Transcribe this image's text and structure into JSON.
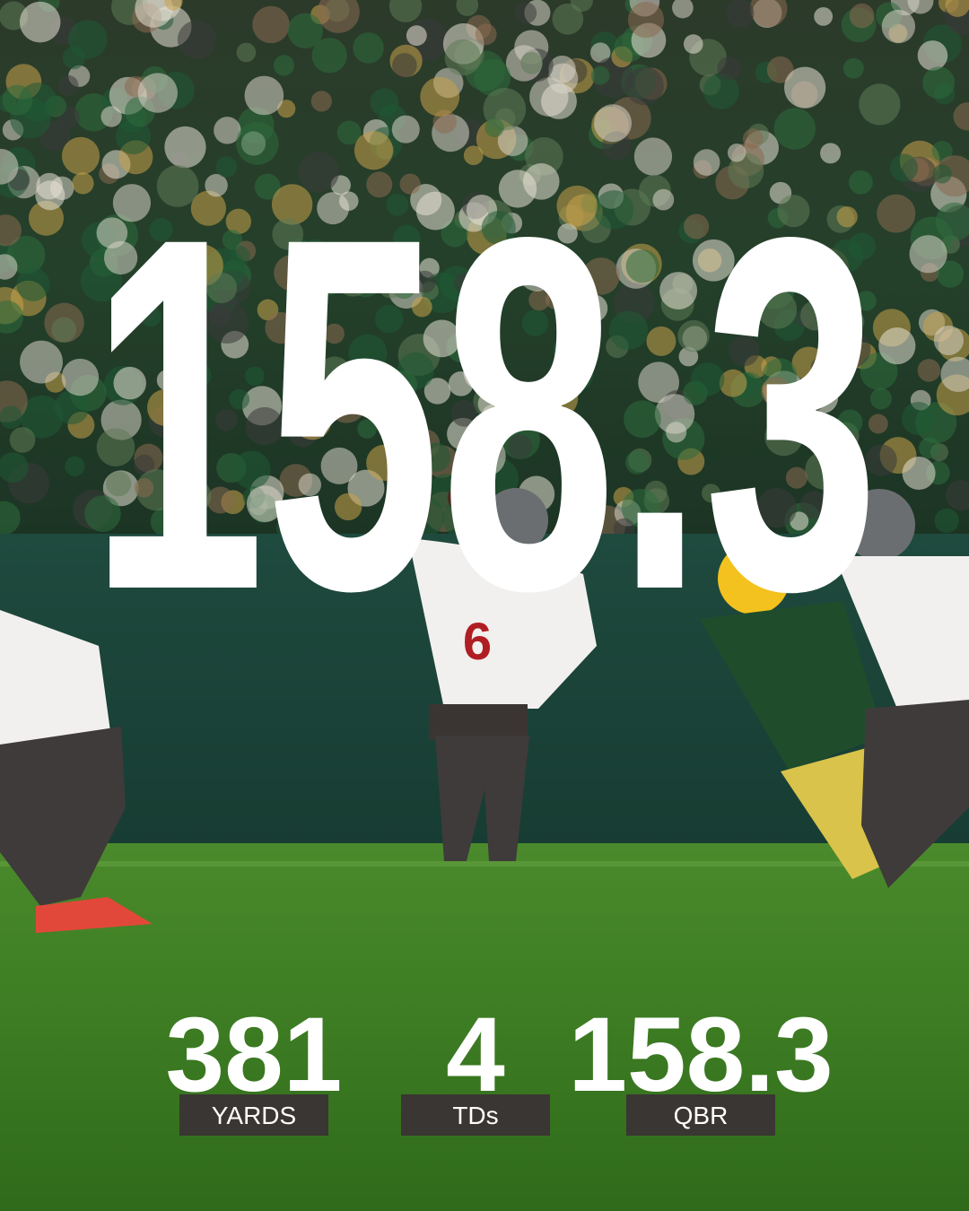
{
  "hero": {
    "number": "158.3"
  },
  "stats": [
    {
      "value": "381",
      "label": "YARDS"
    },
    {
      "value": "4",
      "label": "TDs"
    },
    {
      "value": "158.3",
      "label": "QBR"
    }
  ]
}
